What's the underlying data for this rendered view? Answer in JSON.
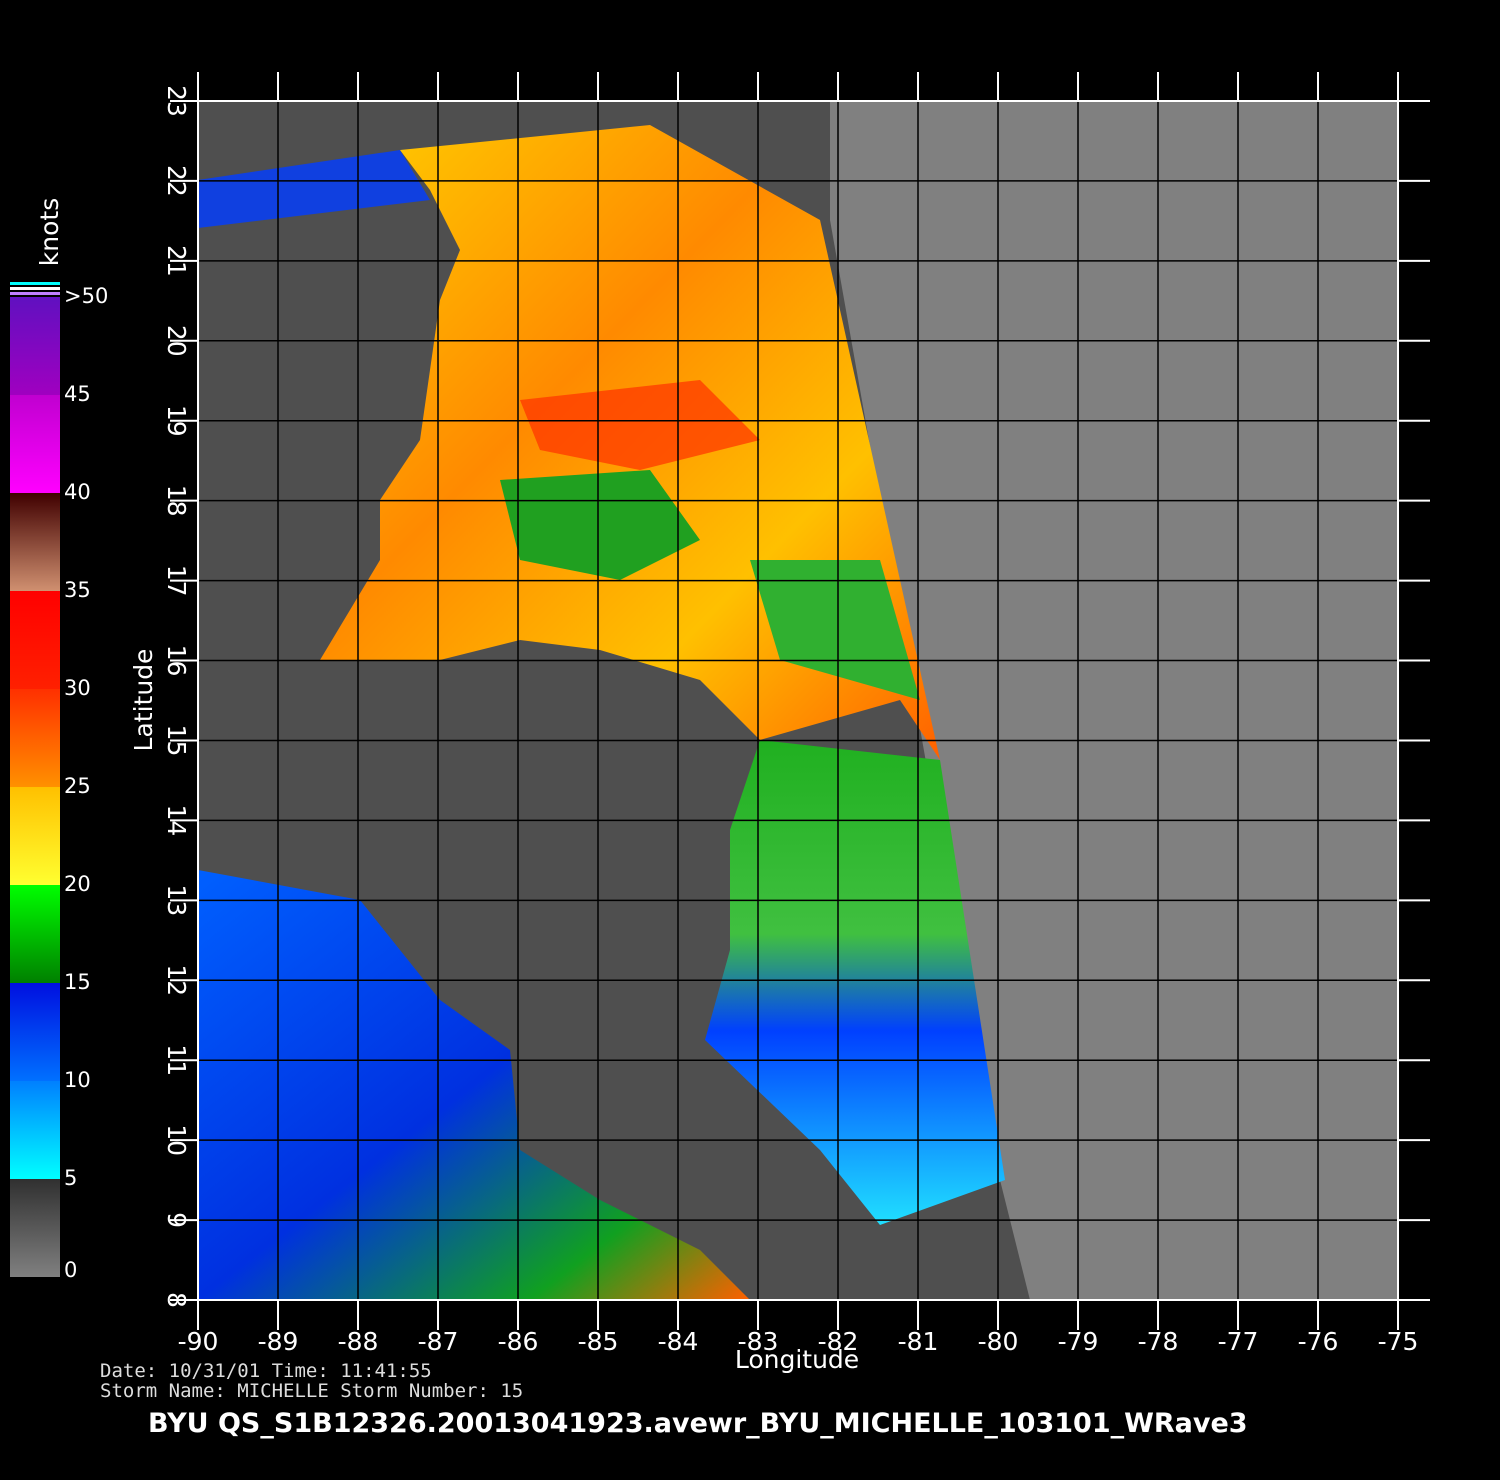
{
  "map": {
    "xlabel": "Longitude",
    "ylabel": "Latitude",
    "xlim": [
      -90,
      -75
    ],
    "ylim": [
      8,
      23
    ],
    "xticks": [
      -90,
      -89,
      -88,
      -87,
      -86,
      -85,
      -84,
      -83,
      -82,
      -81,
      -80,
      -79,
      -78,
      -77,
      -76,
      -75
    ],
    "yticks": [
      8,
      9,
      10,
      11,
      12,
      13,
      14,
      15,
      16,
      17,
      18,
      19,
      20,
      21,
      22,
      23
    ],
    "grid": true,
    "background": "#808080"
  },
  "colorbar": {
    "unit": "knots",
    "lim": [
      0,
      50
    ],
    "ticks": [
      0,
      5,
      10,
      15,
      20,
      25,
      30,
      35,
      40,
      45,
      {
        "value": 50,
        "label": ">50"
      }
    ],
    "colors": [
      [
        "#808080",
        "#303030"
      ],
      [
        "#00ffff",
        "#0080ff"
      ],
      [
        "#0070ff",
        "#0010e0"
      ],
      [
        "#008000",
        "#00ff00"
      ],
      [
        "#ffff30",
        "#ffc000"
      ],
      [
        "#ff9000",
        "#ff3000"
      ],
      [
        "#ff2000",
        "#ff0000"
      ],
      [
        "#d09070",
        "#400000"
      ],
      [
        "#ff00ff",
        "#c000d0"
      ],
      [
        "#a000c0",
        "#6010c0"
      ]
    ]
  },
  "footer": {
    "line1": "Date: 10/31/01   Time: 11:41:55",
    "line2": "Storm  Name: MICHELLE   Storm  Number: 15",
    "title": "BYU  QS_S1B12326.20013041923.avewr_BYU_MICHELLE_103101_WRave3"
  }
}
